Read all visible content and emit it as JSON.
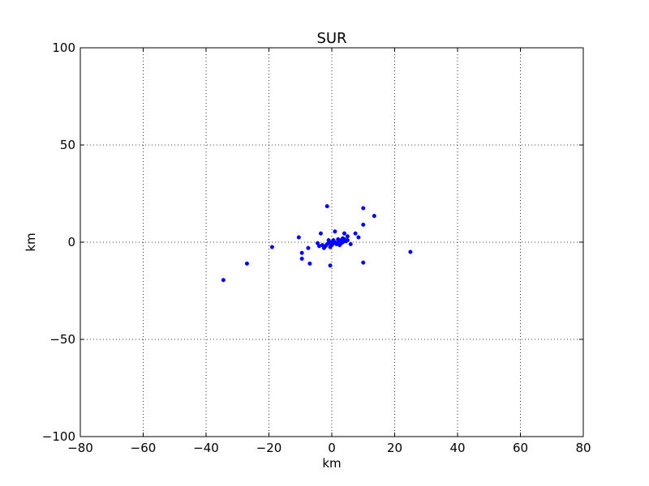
{
  "chart_data": {
    "type": "scatter",
    "title": "SUR",
    "xlabel": "km",
    "ylabel": "km",
    "xlim": [
      -80,
      80
    ],
    "ylim": [
      -100,
      100
    ],
    "xticks": [
      -80,
      -60,
      -40,
      -20,
      0,
      20,
      40,
      60,
      80
    ],
    "yticks": [
      -100,
      -50,
      0,
      50,
      100
    ],
    "xtick_labels": [
      "−80",
      "−60",
      "−40",
      "−20",
      "0",
      "20",
      "40",
      "60",
      "80"
    ],
    "ytick_labels": [
      "−100",
      "−50",
      "0",
      "50",
      "100"
    ],
    "grid": true,
    "marker_color": "#0000ff",
    "series": [
      {
        "points": [
          [
            -34.5,
            -19.5
          ],
          [
            -27,
            -11
          ],
          [
            -19,
            -2.5
          ],
          [
            -10.5,
            2.5
          ],
          [
            -9.5,
            -5.5
          ],
          [
            -9.5,
            -8.5
          ],
          [
            -7.5,
            -3
          ],
          [
            -7,
            -11
          ],
          [
            -4.5,
            -0.5
          ],
          [
            -4,
            -2
          ],
          [
            -3.5,
            4.5
          ],
          [
            -3,
            -1.5
          ],
          [
            -2.5,
            -3
          ],
          [
            -2,
            -2
          ],
          [
            -1.5,
            18.5
          ],
          [
            -1.5,
            -1
          ],
          [
            -1,
            -0.5
          ],
          [
            -1,
            1
          ],
          [
            -0.5,
            -2.5
          ],
          [
            -0.5,
            -12
          ],
          [
            0,
            0
          ],
          [
            0,
            -1.5
          ],
          [
            0.5,
            1
          ],
          [
            0.5,
            -0.5
          ],
          [
            1,
            5.5
          ],
          [
            1,
            0
          ],
          [
            1.5,
            -1
          ],
          [
            2,
            1.5
          ],
          [
            2,
            0
          ],
          [
            2.5,
            -1.5
          ],
          [
            2.5,
            0.5
          ],
          [
            3,
            1
          ],
          [
            3,
            -0.5
          ],
          [
            3.5,
            2
          ],
          [
            3.5,
            0
          ],
          [
            4,
            4.5
          ],
          [
            4,
            1.5
          ],
          [
            4.5,
            0.5
          ],
          [
            5,
            3
          ],
          [
            5,
            1
          ],
          [
            6,
            -1
          ],
          [
            7.5,
            4.5
          ],
          [
            8.5,
            2.5
          ],
          [
            10,
            17.5
          ],
          [
            10,
            9
          ],
          [
            10,
            -10.5
          ],
          [
            13.5,
            13.5
          ],
          [
            25,
            -5
          ]
        ]
      }
    ]
  }
}
